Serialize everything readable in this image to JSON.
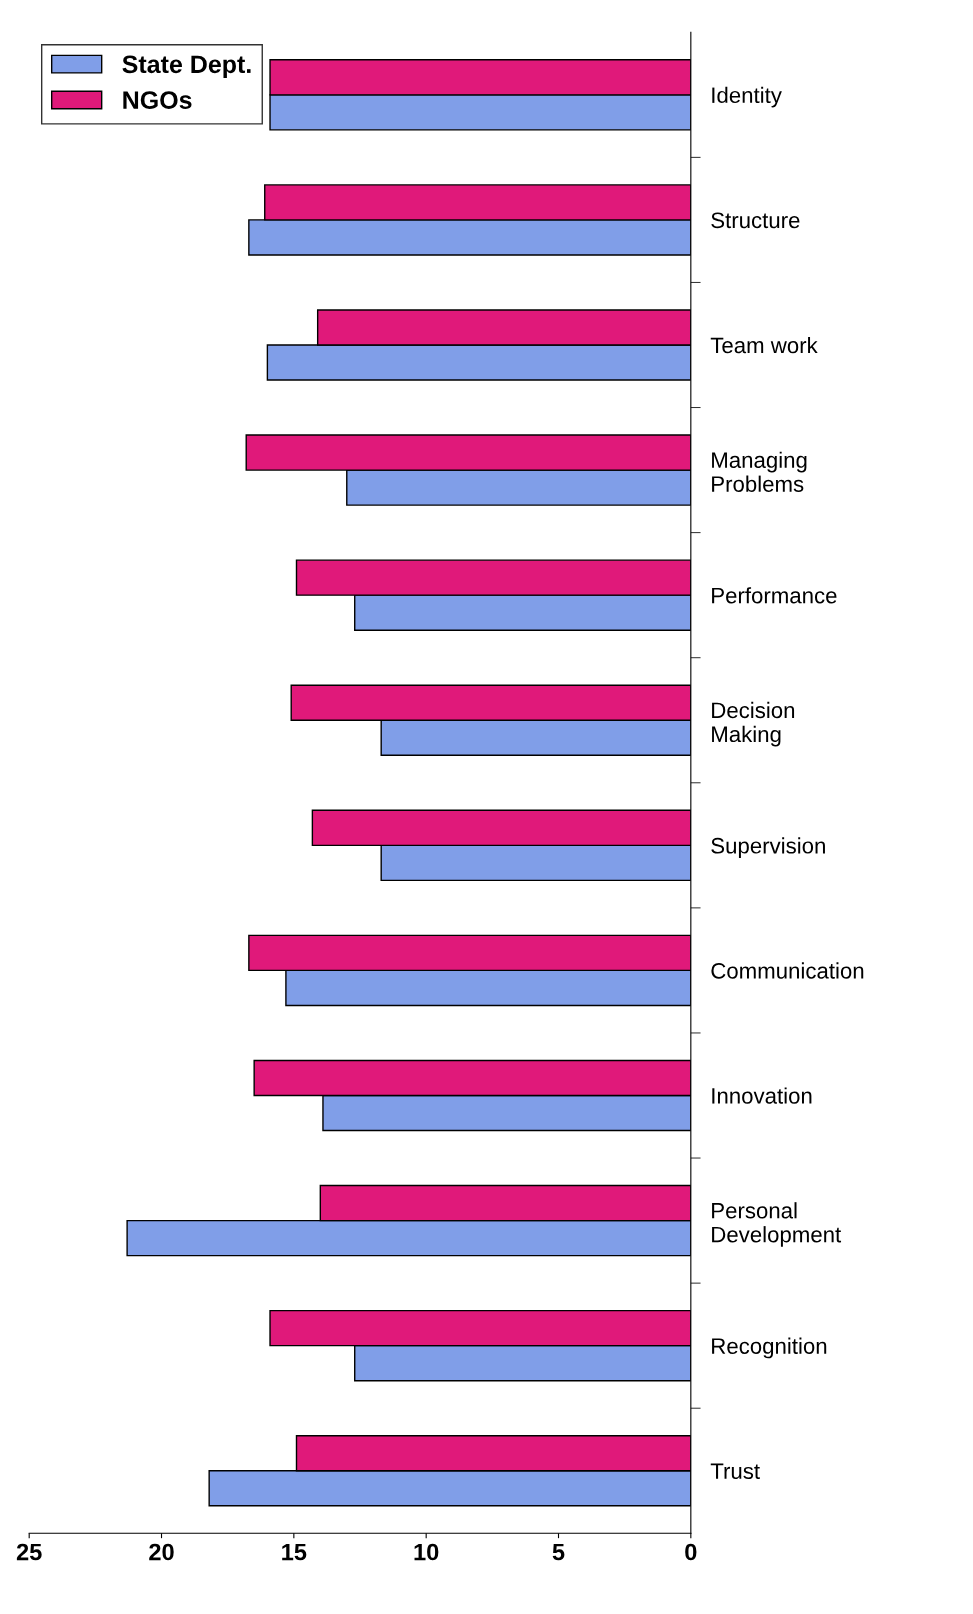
{
  "chart_data": {
    "type": "bar",
    "orientation": "horizontal",
    "categories": [
      "Identity",
      "Structure",
      "Team work",
      "Managing\nProblems",
      "Performance",
      "Decision\nMaking",
      "Supervision",
      "Communication",
      "Innovation",
      "Personal\nDevelopment",
      "Recognition",
      "Trust"
    ],
    "series": [
      {
        "name": "State Dept.",
        "color": "#809ee8",
        "values": [
          15.9,
          16.7,
          16.0,
          13.0,
          12.7,
          11.7,
          11.7,
          15.3,
          13.9,
          21.3,
          12.7,
          18.2
        ]
      },
      {
        "name": "NGOs",
        "color": "#e0197a",
        "values": [
          15.9,
          16.1,
          14.1,
          16.8,
          14.9,
          15.1,
          14.3,
          16.7,
          16.5,
          14.0,
          15.9,
          14.9
        ]
      }
    ],
    "xlim": [
      25,
      0
    ],
    "xticks": [
      0,
      5,
      10,
      15,
      20,
      25
    ],
    "grid": false,
    "legend": "top left"
  }
}
